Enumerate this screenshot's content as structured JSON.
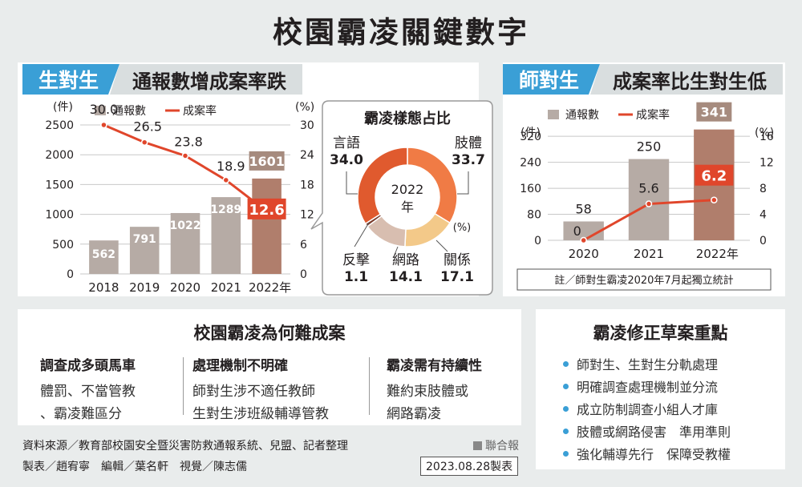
{
  "title": "校園霸凌關鍵數字",
  "colors": {
    "accent": "#3a9fd6",
    "bar_light": "#b6aba5",
    "bar_dark": "#b07e6c",
    "line": "#e0462b",
    "label_box": "#a68b7e"
  },
  "left": {
    "tag": "生對生",
    "subtitle": "通報數增成案率跌"
  },
  "right": {
    "tag": "師對生",
    "subtitle": "成案率比生對生低",
    "note": "註／師對生霸凌2020年7月起獨立統計"
  },
  "donut_title": "霸凌樣態占比",
  "donut_center": [
    "2022",
    "年"
  ],
  "why": {
    "title": "校園霸凌為何難成案",
    "cols": [
      {
        "h": "調查成多頭馬車",
        "l1": "體罰、不當管教",
        "l2": "、霸凌難區分"
      },
      {
        "h": "處理機制不明確",
        "l1": "師對生涉不適任教師",
        "l2": "生對生涉班級輔導管教"
      },
      {
        "h": "霸凌需有持續性",
        "l1": "難約束肢體或",
        "l2": "網路霸凌"
      }
    ]
  },
  "amend": {
    "title": "霸凌修正草案重點",
    "items": [
      "師對生、生對生分軌處理",
      "明確調查處理機制並分流",
      "成立防制調查小組人才庫",
      "肢體或網路侵害　準用準則",
      "強化輔導先行　保障受教權"
    ]
  },
  "footer": {
    "source": "資料來源／教育部校園安全暨災害防救通報系統、兒盟、記者整理",
    "credit": "製表／趙宥寧　編輯／葉名軒　視覺／陳志儒",
    "brand": "聯合報",
    "date": "2023.08.28製表"
  },
  "chart_data": [
    {
      "type": "bar+line",
      "title": "生對生",
      "categories": [
        "2018",
        "2019",
        "2020",
        "2021",
        "2022年"
      ],
      "legend": [
        "通報數",
        "成案率"
      ],
      "y_left": {
        "unit": "(件)",
        "ticks": [
          0,
          500,
          1000,
          1500,
          2000,
          2500
        ],
        "range": [
          0,
          2500
        ]
      },
      "y_right": {
        "unit": "(%)",
        "ticks": [
          0,
          6,
          12,
          18,
          24,
          30
        ],
        "range": [
          0,
          30
        ]
      },
      "series": [
        {
          "name": "通報數",
          "kind": "bar",
          "values": [
            562,
            791,
            1022,
            1289,
            1601
          ],
          "labels": [
            "562",
            "791",
            "1022",
            "1289",
            "1601"
          ]
        },
        {
          "name": "成案率",
          "kind": "line",
          "values": [
            30.0,
            26.5,
            23.8,
            18.9,
            12.6
          ],
          "labels": [
            "30.0",
            "26.5",
            "23.8",
            "18.9",
            "12.6"
          ]
        }
      ]
    },
    {
      "type": "bar+line",
      "title": "師對生",
      "categories": [
        "2020",
        "2021",
        "2022年"
      ],
      "legend": [
        "通報數",
        "成案率"
      ],
      "y_left": {
        "unit": "(件)",
        "ticks": [
          0,
          80,
          160,
          240,
          320
        ],
        "range": [
          0,
          350
        ]
      },
      "y_right": {
        "unit": "(%)",
        "ticks": [
          0,
          4,
          8,
          12,
          16
        ],
        "range": [
          0,
          17.5
        ]
      },
      "series": [
        {
          "name": "通報數",
          "kind": "bar",
          "values": [
            58,
            250,
            341
          ],
          "labels": [
            "58",
            "250",
            "341"
          ]
        },
        {
          "name": "成案率",
          "kind": "line",
          "values": [
            0,
            5.6,
            6.2
          ],
          "labels": [
            "0",
            "5.6",
            "6.2"
          ]
        }
      ]
    },
    {
      "type": "pie",
      "title": "霸凌樣態占比",
      "unit": "(%)",
      "slices": [
        {
          "label": "言語",
          "value": 34.0,
          "display": "34.0",
          "color": "#e05a2e"
        },
        {
          "label": "肢體",
          "value": 33.7,
          "display": "33.7",
          "color": "#f07b45"
        },
        {
          "label": "關係",
          "value": 17.1,
          "display": "17.1",
          "color": "#f3c989"
        },
        {
          "label": "網路",
          "value": 14.1,
          "display": "14.1",
          "color": "#d8beb0"
        },
        {
          "label": "反擊",
          "value": 1.1,
          "display": "1.1",
          "color": "#7a3a2a"
        }
      ]
    }
  ]
}
